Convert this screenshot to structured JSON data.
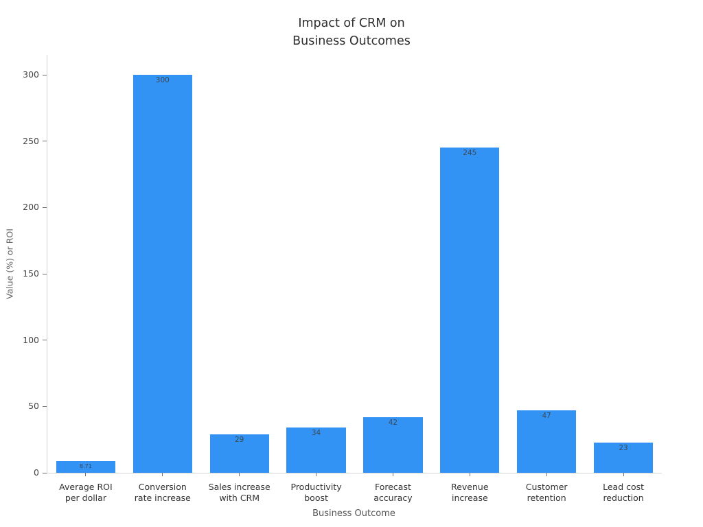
{
  "chart_data": {
    "type": "bar",
    "title": "Impact of CRM on\nBusiness Outcomes",
    "xlabel": "Business Outcome",
    "ylabel": "Value (%) or ROI",
    "categories": [
      "Average ROI\nper dollar",
      "Conversion\nrate increase",
      "Sales increase\nwith CRM",
      "Productivity\nboost",
      "Forecast\naccuracy",
      "Revenue\nincrease",
      "Customer\nretention",
      "Lead cost\nreduction"
    ],
    "values": [
      8.71,
      300,
      29,
      34,
      42,
      245,
      47,
      23
    ],
    "value_labels": [
      "8.71",
      "300",
      "29",
      "34",
      "42",
      "245",
      "47",
      "23"
    ],
    "yticks": [
      0,
      50,
      100,
      150,
      200,
      250,
      300
    ],
    "ylim": [
      0,
      315
    ],
    "bar_color": "#3393f5",
    "bar_width_frac": 0.77,
    "grid": false,
    "legend": false
  }
}
